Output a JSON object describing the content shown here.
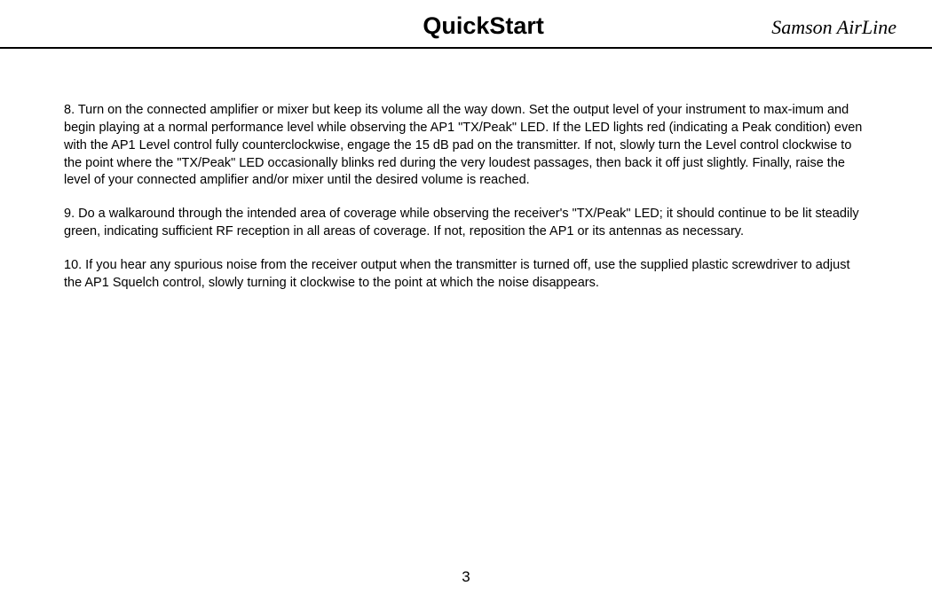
{
  "header": {
    "title": "QuickStart",
    "brand": "Samson AirLine"
  },
  "content": {
    "para1": "8.  Turn on the connected amplifier or mixer but keep its volume all the way down.  Set the output level of your instrument to      max-imum and begin playing at a normal performance level while observing the AP1 \"TX/Peak\" LED.  If the LED lights red (indicating a Peak condition) even with the AP1 Level control fully counterclockwise, engage the 15 dB pad on the transmitter.  If not, slowly  turn the Level control clockwise to the point where the \"TX/Peak\" LED occasionally blinks red during the very loudest passages, then back it off just  slightly.  Finally, raise the level of your connected amplifier and/or mixer until the desired volume is reached.",
    "para2": "9.  Do a walkaround through the intended area of coverage while observing the receiver's \"TX/Peak\" LED; it should continue to be lit steadily green, indicating sufficient RF reception in all areas of coverage.  If not, reposition the AP1 or its antennas as necessary.",
    "para3": "10.  If you hear any spurious noise from the receiver output when the transmitter is turned off, use the supplied plastic screwdriver to adjust the AP1 Squelch control, slowly turning it clockwise to the point at which the noise disappears."
  },
  "footer": {
    "page_number": "3"
  }
}
